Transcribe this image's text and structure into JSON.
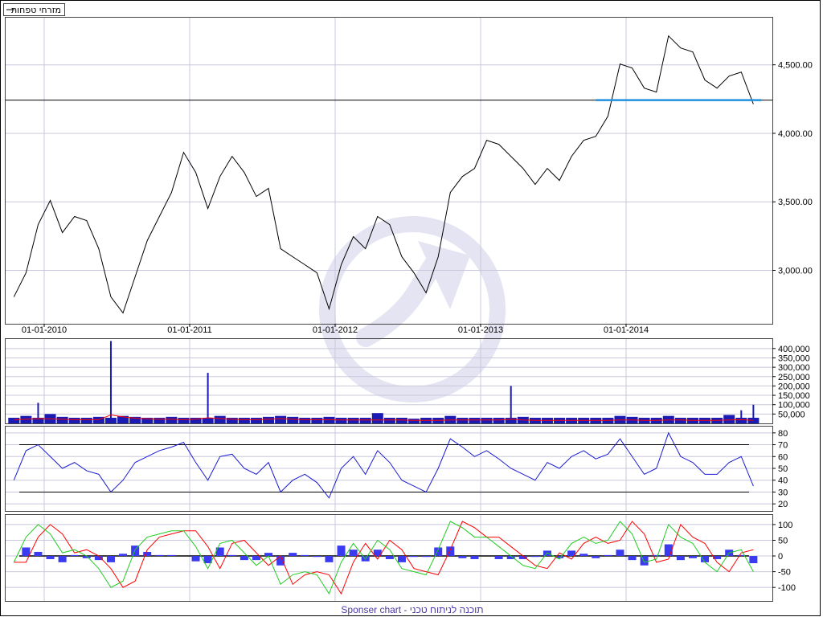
{
  "legend": {
    "label": "מזרחי טפחות",
    "line_color": "#000000"
  },
  "footer": {
    "text": "Sponser chart - תוכנה לניתוח טכני"
  },
  "colors": {
    "price": "#000000",
    "volume": "#1a1ab4",
    "volume_avg": "#ff0000",
    "rsi": "#1a1ad2",
    "macd": "#22cc22",
    "signal": "#ff0000",
    "histogram": "#3a3af0",
    "support": "#1f8fe0",
    "grid": "#c8c8dc",
    "watermark": "#dcdcee"
  },
  "chart_data": [
    {
      "type": "line",
      "panel": "price",
      "x_tick_labels": [
        "01-01-2010",
        "01-01-2011",
        "01-01-2012",
        "01-01-2013",
        "01-01-2014"
      ],
      "y_tick_labels": [
        "3,000.00",
        "3,500.00",
        "4,000.00",
        "4,500.00"
      ],
      "y_ticks": [
        3000,
        3500,
        4000,
        4500
      ],
      "ylim": [
        2610,
        4850
      ],
      "dates": [
        "2009-10",
        "2009-11",
        "2009-12",
        "2010-01",
        "2010-02",
        "2010-03",
        "2010-04",
        "2010-05",
        "2010-06",
        "2010-07",
        "2010-08",
        "2010-09",
        "2010-10",
        "2010-11",
        "2010-12",
        "2011-01",
        "2011-02",
        "2011-03",
        "2011-04",
        "2011-05",
        "2011-06",
        "2011-07",
        "2011-08",
        "2011-09",
        "2011-10",
        "2011-11",
        "2011-12",
        "2012-01",
        "2012-02",
        "2012-03",
        "2012-04",
        "2012-05",
        "2012-06",
        "2012-07",
        "2012-08",
        "2012-09",
        "2012-10",
        "2012-11",
        "2012-12",
        "2013-01",
        "2013-02",
        "2013-03",
        "2013-04",
        "2013-05",
        "2013-06",
        "2013-07",
        "2013-08",
        "2013-09",
        "2013-10",
        "2013-11",
        "2013-12",
        "2014-01",
        "2014-02",
        "2014-03",
        "2014-04",
        "2014-05",
        "2014-06",
        "2014-07",
        "2014-08",
        "2014-09",
        "2014-10",
        "2014-11"
      ],
      "values": [
        2806,
        2982,
        3334,
        3510,
        3275,
        3393,
        3363,
        3158,
        2806,
        2689,
        2953,
        3217,
        3393,
        3568,
        3861,
        3715,
        3451,
        3685,
        3832,
        3715,
        3539,
        3598,
        3158,
        3099,
        3041,
        2982,
        2718,
        3041,
        3246,
        3158,
        3393,
        3334,
        3099,
        2982,
        2836,
        3099,
        3568,
        3685,
        3744,
        3949,
        3920,
        3832,
        3744,
        3627,
        3744,
        3656,
        3832,
        3949,
        3978,
        4125,
        4506,
        4477,
        4330,
        4301,
        4711,
        4623,
        4594,
        4389,
        4330,
        4418,
        4447,
        4213
      ],
      "horizontal_line": 4242,
      "support_line": {
        "value": 4242,
        "from": "2013-10",
        "to": "2014-11"
      }
    },
    {
      "type": "bar",
      "panel": "volume",
      "y_tick_labels": [
        "50,000",
        "100,000",
        "150,000",
        "200,000",
        "250,000",
        "300,000",
        "350,000",
        "400,000"
      ],
      "y_ticks": [
        50000,
        100000,
        150000,
        200000,
        250000,
        300000,
        350000,
        400000
      ],
      "ylim": [
        0,
        455000
      ],
      "values": [
        30000,
        40000,
        110000,
        50000,
        35000,
        30000,
        30000,
        35000,
        440000,
        40000,
        35000,
        30000,
        30000,
        35000,
        30000,
        30000,
        270000,
        40000,
        30000,
        30000,
        30000,
        35000,
        40000,
        35000,
        30000,
        30000,
        35000,
        30000,
        30000,
        30000,
        55000,
        30000,
        30000,
        25000,
        30000,
        30000,
        40000,
        30000,
        30000,
        30000,
        30000,
        200000,
        35000,
        30000,
        30000,
        30000,
        30000,
        30000,
        30000,
        30000,
        40000,
        35000,
        30000,
        30000,
        40000,
        30000,
        30000,
        30000,
        30000,
        45000,
        70000,
        100000
      ],
      "average": [
        20000,
        22000,
        25000,
        24000,
        22000,
        20000,
        20000,
        20000,
        45000,
        35000,
        28000,
        24000,
        22000,
        22000,
        20000,
        22000,
        30000,
        26000,
        22000,
        20000,
        20000,
        22000,
        25000,
        22000,
        20000,
        20000,
        20000,
        18000,
        18000,
        18000,
        18000,
        18000,
        18000,
        16000,
        16000,
        16000,
        18000,
        18000,
        18000,
        18000,
        18000,
        22000,
        18000,
        16000,
        16000,
        16000,
        16000,
        16000,
        16000,
        16000,
        18000,
        18000,
        16000,
        16000,
        18000,
        18000,
        16000,
        16000,
        16000,
        18000,
        20000,
        16000
      ]
    },
    {
      "type": "line",
      "panel": "rsi",
      "y_tick_labels": [
        "20",
        "30",
        "40",
        "50",
        "60",
        "70",
        "80"
      ],
      "y_ticks": [
        20,
        30,
        40,
        50,
        60,
        70,
        80
      ],
      "ylim": [
        14,
        86
      ],
      "levels": [
        30,
        70
      ],
      "values": [
        40,
        65,
        70,
        60,
        50,
        55,
        48,
        45,
        30,
        40,
        55,
        60,
        65,
        68,
        72,
        55,
        40,
        60,
        62,
        50,
        45,
        55,
        30,
        40,
        45,
        38,
        25,
        50,
        60,
        45,
        65,
        55,
        40,
        35,
        30,
        50,
        75,
        68,
        60,
        65,
        58,
        50,
        45,
        40,
        55,
        50,
        60,
        65,
        58,
        62,
        75,
        60,
        45,
        50,
        80,
        60,
        55,
        45,
        45,
        55,
        60,
        35
      ]
    },
    {
      "type": "line",
      "panel": "macd",
      "y_tick_labels": [
        "-100",
        "-50",
        "0",
        "50",
        "100"
      ],
      "y_ticks": [
        -100,
        -50,
        0,
        50,
        100
      ],
      "ylim": [
        -143,
        133
      ],
      "macd": [
        -20,
        60,
        100,
        70,
        10,
        20,
        0,
        -40,
        -100,
        -80,
        20,
        60,
        70,
        80,
        80,
        30,
        -40,
        40,
        50,
        10,
        -30,
        0,
        -90,
        -60,
        -50,
        -60,
        -120,
        -20,
        40,
        -10,
        50,
        20,
        -40,
        -50,
        -60,
        20,
        110,
        90,
        60,
        60,
        30,
        0,
        -30,
        -40,
        10,
        -10,
        40,
        60,
        40,
        50,
        110,
        70,
        -20,
        -10,
        100,
        60,
        40,
        -20,
        -50,
        10,
        20,
        -50
      ],
      "signal": [
        -20,
        -20,
        60,
        100,
        70,
        10,
        20,
        0,
        -40,
        -100,
        -80,
        20,
        60,
        70,
        80,
        80,
        30,
        -40,
        40,
        50,
        10,
        -30,
        0,
        -90,
        -60,
        -50,
        -60,
        -120,
        -20,
        40,
        -10,
        50,
        20,
        -40,
        -50,
        -60,
        20,
        110,
        90,
        60,
        60,
        30,
        0,
        -30,
        -40,
        10,
        -10,
        40,
        60,
        40,
        50,
        110,
        70,
        -20,
        -10,
        100,
        60,
        40,
        -20,
        -50,
        10,
        20
      ],
      "histogram": [
        0,
        27,
        13,
        -10,
        -20,
        3,
        -7,
        -13,
        -20,
        7,
        33,
        13,
        3,
        3,
        0,
        -17,
        -23,
        27,
        3,
        -13,
        -13,
        10,
        -30,
        10,
        3,
        -3,
        -20,
        33,
        20,
        -17,
        20,
        -10,
        -20,
        -3,
        -3,
        27,
        30,
        -7,
        -10,
        0,
        -10,
        -10,
        -10,
        -3,
        17,
        -7,
        17,
        7,
        -7,
        3,
        20,
        -13,
        -30,
        3,
        37,
        -13,
        -7,
        -20,
        -10,
        20,
        3,
        -23
      ]
    }
  ]
}
